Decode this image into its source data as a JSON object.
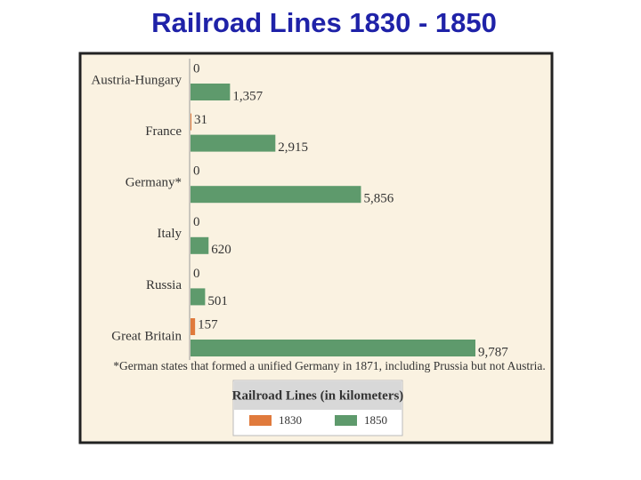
{
  "chart_data": {
    "type": "bar",
    "orientation": "horizontal",
    "title": "Railroad Lines 1830 - 1850",
    "categories": [
      "Austria-Hungary",
      "France",
      "Germany*",
      "Italy",
      "Russia",
      "Great Britain"
    ],
    "series": [
      {
        "name": "1830",
        "color": "#e07a3c",
        "values": [
          0,
          31,
          0,
          0,
          0,
          157
        ],
        "value_labels": [
          "0",
          "31",
          "0",
          "0",
          "0",
          "157"
        ]
      },
      {
        "name": "1850",
        "color": "#5e9a6c",
        "values": [
          1357,
          2915,
          5856,
          620,
          501,
          9787
        ],
        "value_labels": [
          "1,357",
          "2,915",
          "5,856",
          "620",
          "501",
          "9,787"
        ]
      }
    ],
    "note": "*German states that formed a unified Germany in 1871, including Prussia but not Austria.",
    "legend_title": "Railroad Lines (in kilometers)"
  }
}
